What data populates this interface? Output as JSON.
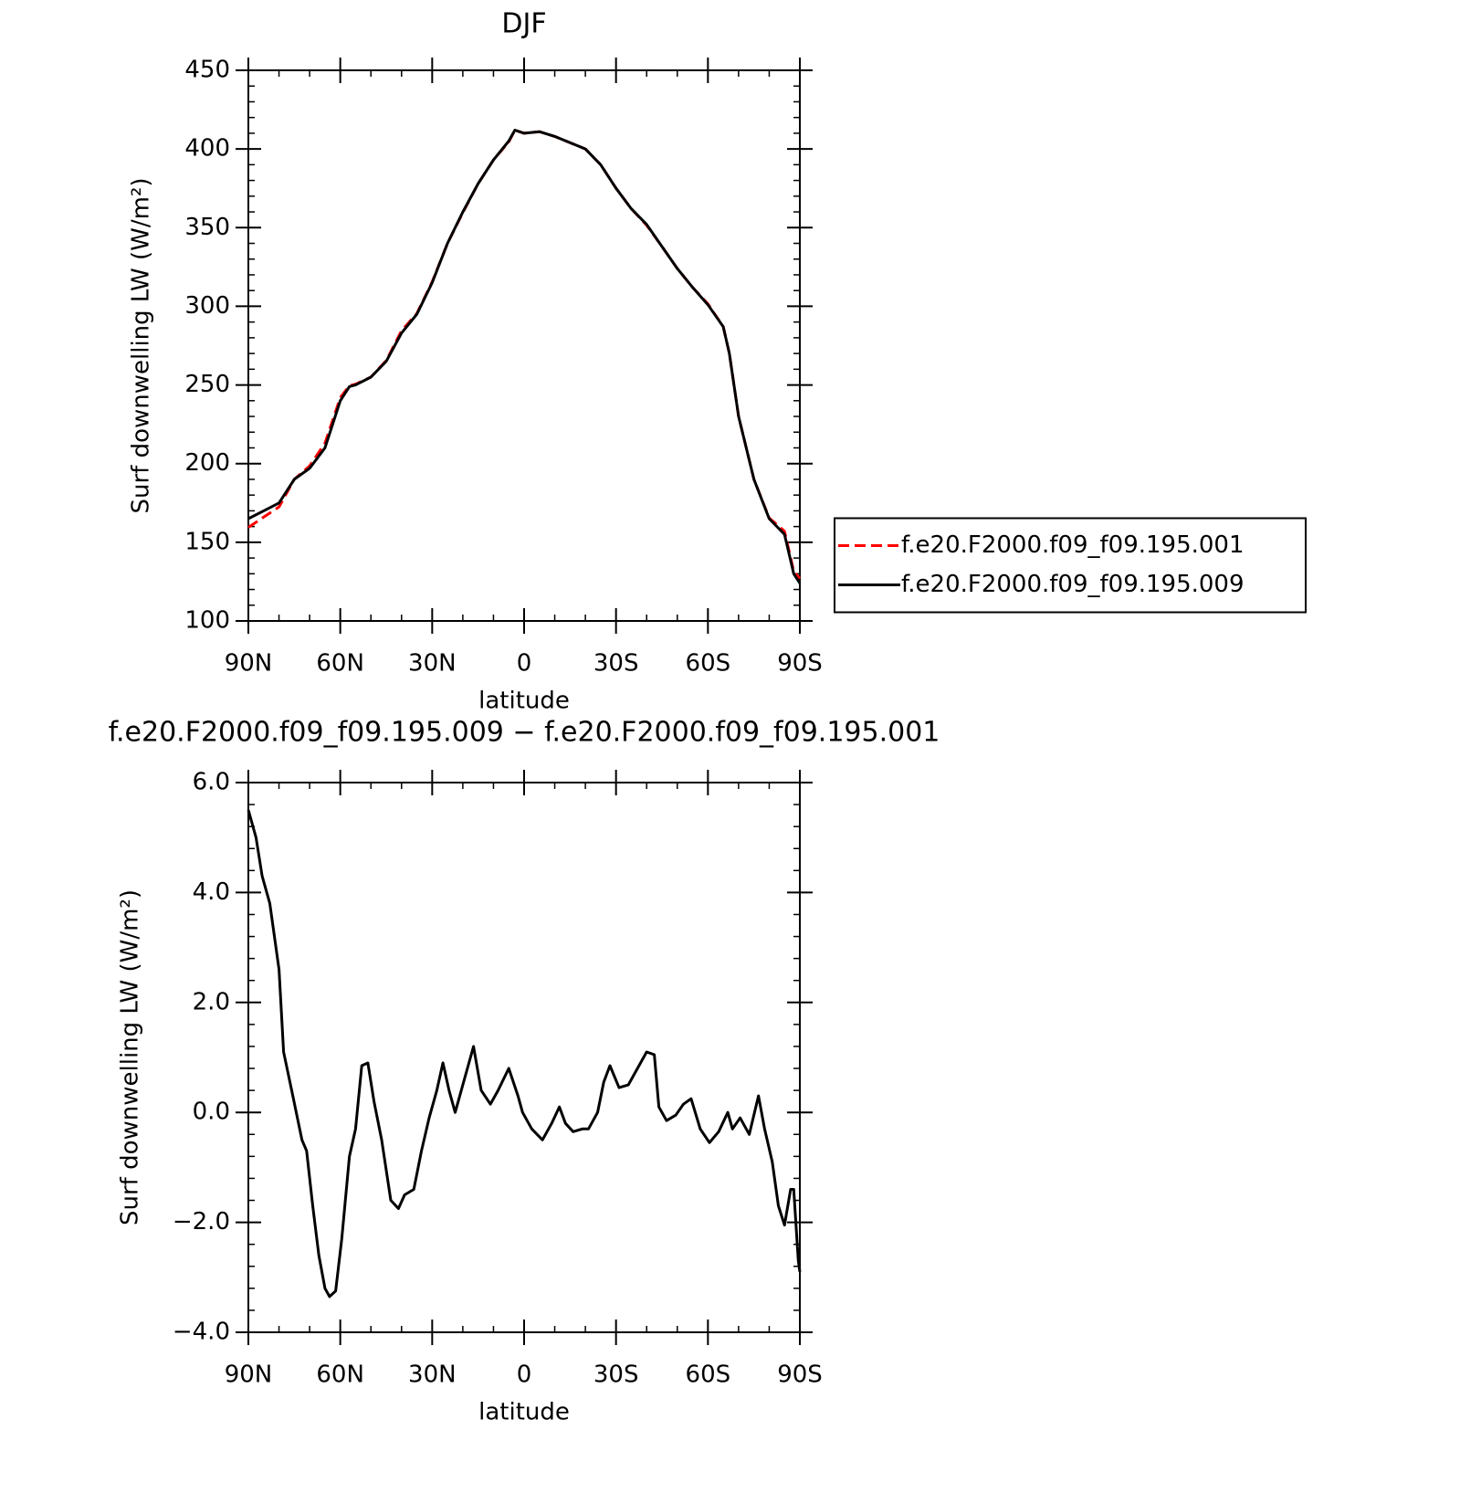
{
  "chart_data": [
    {
      "type": "line",
      "title": "DJF",
      "xlabel": "latitude",
      "ylabel": "Surf downwelling LW (W/m²)",
      "x": [
        90,
        85,
        80,
        75,
        70,
        65,
        60,
        57,
        55,
        50,
        45,
        40,
        35,
        30,
        25,
        20,
        15,
        10,
        5,
        3,
        0,
        -5,
        -10,
        -15,
        -20,
        -25,
        -30,
        -35,
        -40,
        -45,
        -50,
        -55,
        -60,
        -65,
        -67,
        -70,
        -75,
        -80,
        -85,
        -88,
        -90
      ],
      "series": [
        {
          "name": "f.e20.F2000.f09_f09.195.001",
          "color": "#ff0000",
          "line_style": "dashed",
          "values": [
            159.5,
            166,
            172.5,
            190,
            198.5,
            213,
            242,
            249.5,
            250.5,
            255,
            265.5,
            284.5,
            295.5,
            315.5,
            340,
            359.5,
            378,
            393,
            404.5,
            412,
            410,
            411,
            408,
            404,
            400,
            390,
            375,
            362,
            351.5,
            338,
            324,
            312,
            301.5,
            287,
            270,
            230,
            190,
            165.5,
            157,
            131.5,
            127
          ]
        },
        {
          "name": "f.e20.F2000.f09_f09.195.009",
          "color": "#000000",
          "line_style": "solid",
          "values": [
            165,
            170,
            175,
            190,
            197,
            210,
            240,
            249,
            250,
            255,
            265,
            283,
            295,
            315,
            340,
            360,
            378,
            393,
            405,
            412,
            410,
            411,
            408,
            404,
            400,
            390,
            375,
            362,
            352,
            338,
            324,
            312,
            301,
            287,
            270,
            230,
            190,
            165,
            155,
            130,
            124
          ]
        }
      ],
      "xlim": [
        90,
        -90
      ],
      "xticks": [
        {
          "value": 90,
          "label": "90N"
        },
        {
          "value": 60,
          "label": "60N"
        },
        {
          "value": 30,
          "label": "30N"
        },
        0,
        {
          "value": -30,
          "label": "30S"
        },
        {
          "value": -60,
          "label": "60S"
        },
        {
          "value": -90,
          "label": "90S"
        }
      ],
      "ylim": [
        100,
        450
      ],
      "yticks": [
        100,
        150,
        200,
        250,
        300,
        350,
        400,
        450
      ],
      "legend": "right"
    },
    {
      "type": "line",
      "title": "f.e20.F2000.f09_f09.195.009 − f.e20.F2000.f09_f09.195.001",
      "xlabel": "latitude",
      "ylabel": "Surf downwelling LW (W/m²)",
      "x": [
        90,
        87.5,
        85.5,
        83,
        80,
        78.5,
        75.5,
        72.5,
        71,
        69,
        67,
        65,
        63.5,
        61.5,
        59.5,
        57,
        55,
        53,
        51,
        49,
        46.5,
        43.5,
        41,
        39,
        36,
        33.5,
        31,
        28.5,
        26.5,
        24.5,
        22.5,
        20.5,
        16.5,
        14,
        11,
        8.5,
        5,
        2,
        0.5,
        -2.5,
        -6,
        -9,
        -11.5,
        -13.5,
        -16,
        -19,
        -21,
        -24,
        -26,
        -28,
        -31,
        -34,
        -37,
        -40,
        -42.5,
        -44,
        -46.5,
        -49.5,
        -52,
        -54.5,
        -57.5,
        -60.5,
        -63.5,
        -66.5,
        -68,
        -70.5,
        -73.5,
        -76.5,
        -78.5,
        -81,
        -83,
        -85,
        -87,
        -88,
        -89.5,
        -90
      ],
      "color": "#000000",
      "values": [
        5.5,
        5.0,
        4.3,
        3.8,
        2.6,
        1.1,
        0.3,
        -0.5,
        -0.7,
        -1.7,
        -2.6,
        -3.2,
        -3.35,
        -3.25,
        -2.3,
        -0.8,
        -0.3,
        0.85,
        0.9,
        0.2,
        -0.5,
        -1.6,
        -1.75,
        -1.5,
        -1.4,
        -0.7,
        -0.1,
        0.4,
        0.9,
        0.4,
        0.0,
        0.4,
        1.2,
        0.4,
        0.15,
        0.4,
        0.8,
        0.3,
        0.0,
        -0.3,
        -0.5,
        -0.2,
        0.1,
        -0.2,
        -0.35,
        -0.3,
        -0.3,
        0.0,
        0.55,
        0.85,
        0.45,
        0.5,
        0.8,
        1.1,
        1.05,
        0.1,
        -0.15,
        -0.05,
        0.15,
        0.25,
        -0.3,
        -0.55,
        -0.35,
        0.0,
        -0.3,
        -0.1,
        -0.4,
        0.3,
        -0.3,
        -0.9,
        -1.7,
        -2.05,
        -1.4,
        -1.4,
        -2.7,
        -2.9
      ],
      "xlim": [
        90,
        -90
      ],
      "xticks": [
        {
          "value": 90,
          "label": "90N"
        },
        {
          "value": 60,
          "label": "60N"
        },
        {
          "value": 30,
          "label": "30N"
        },
        0,
        {
          "value": -30,
          "label": "30S"
        },
        {
          "value": -60,
          "label": "60S"
        },
        {
          "value": -90,
          "label": "90S"
        }
      ],
      "ylim": [
        -4,
        6
      ],
      "yticks": [
        {
          "value": -4,
          "label": "−4.0"
        },
        {
          "value": -2,
          "label": "−2.0"
        },
        {
          "value": 0,
          "label": "0.0"
        },
        {
          "value": 2,
          "label": "2.0"
        },
        {
          "value": 4,
          "label": "4.0"
        },
        {
          "value": 6,
          "label": "6.0"
        }
      ]
    }
  ]
}
